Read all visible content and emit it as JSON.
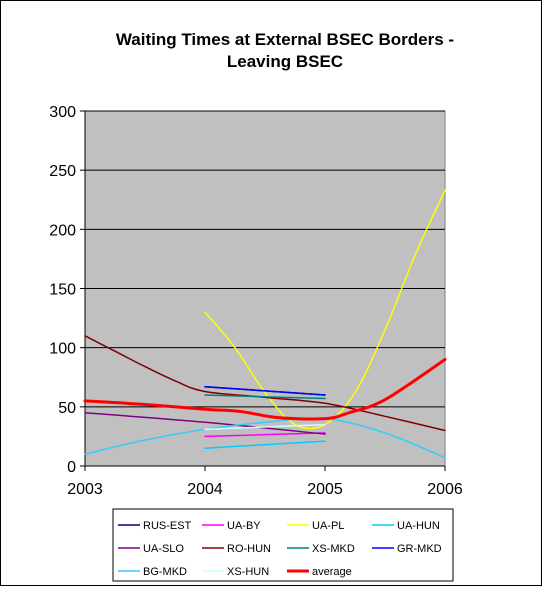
{
  "chart_data": {
    "type": "line",
    "title": "Waiting Times at External BSEC Borders - Leaving BSEC",
    "title_lines": [
      "Waiting Times at External BSEC Borders -",
      "Leaving BSEC"
    ],
    "xlabel": "",
    "ylabel": "",
    "x_ticks": [
      "2003",
      "2004",
      "2005",
      "2006"
    ],
    "y_ticks": [
      "0",
      "50",
      "100",
      "150",
      "200",
      "250",
      "300"
    ],
    "xlim": [
      2003,
      2006
    ],
    "ylim": [
      0,
      300
    ],
    "grid": "horizontal",
    "plot_background": "#c0c0c0",
    "legend_position": "bottom",
    "series": [
      {
        "name": "RUS-EST",
        "color": "#000080",
        "width": 1.5,
        "points": [
          [
            2004,
            67
          ],
          [
            2005,
            60
          ]
        ]
      },
      {
        "name": "UA-BY",
        "color": "#ff00ff",
        "width": 1.5,
        "points": [
          [
            2004,
            25
          ],
          [
            2005,
            28
          ]
        ]
      },
      {
        "name": "UA-PL",
        "color": "#ffff00",
        "width": 1.5,
        "points": [
          [
            2004,
            130
          ],
          [
            2004.25,
            100
          ],
          [
            2004.5,
            62
          ],
          [
            2004.75,
            35
          ],
          [
            2005,
            35
          ],
          [
            2005.25,
            62
          ],
          [
            2005.5,
            115
          ],
          [
            2005.75,
            178
          ],
          [
            2006,
            233
          ]
        ]
      },
      {
        "name": "UA-HUN",
        "color": "#00ccff",
        "width": 1.5,
        "points": [
          [
            2004,
            15
          ],
          [
            2005,
            21
          ]
        ]
      },
      {
        "name": "UA-SLO",
        "color": "#800080",
        "width": 1.5,
        "points": [
          [
            2003,
            45
          ],
          [
            2004,
            37
          ],
          [
            2005,
            27
          ]
        ]
      },
      {
        "name": "RO-HUN",
        "color": "#800000",
        "width": 1.5,
        "points": [
          [
            2003,
            110
          ],
          [
            2003.25,
            97
          ],
          [
            2003.5,
            84
          ],
          [
            2003.75,
            72
          ],
          [
            2004,
            63
          ],
          [
            2004.5,
            58
          ],
          [
            2005,
            53
          ],
          [
            2005.5,
            42
          ],
          [
            2006,
            30
          ]
        ]
      },
      {
        "name": "XS-MKD",
        "color": "#008080",
        "width": 1.5,
        "points": [
          [
            2004,
            60
          ],
          [
            2005,
            57
          ]
        ]
      },
      {
        "name": "GR-MKD",
        "color": "#0000ff",
        "width": 1.5,
        "points": [
          [
            2004,
            67
          ],
          [
            2005,
            60
          ]
        ]
      },
      {
        "name": "BG-MKD",
        "color": "#33ccff",
        "width": 1.5,
        "points": [
          [
            2003,
            10
          ],
          [
            2003.5,
            22
          ],
          [
            2004,
            31
          ],
          [
            2004.5,
            37
          ],
          [
            2005,
            40
          ],
          [
            2005.5,
            28
          ],
          [
            2006,
            7
          ]
        ]
      },
      {
        "name": "XS-HUN",
        "color": "#ccffff",
        "width": 1.5,
        "points": [
          [
            2004,
            31
          ],
          [
            2005,
            35
          ]
        ]
      },
      {
        "name": "average",
        "color": "#ff0000",
        "width": 3,
        "points": [
          [
            2003,
            55
          ],
          [
            2003.5,
            52
          ],
          [
            2004,
            48
          ],
          [
            2004.3,
            46
          ],
          [
            2004.6,
            41
          ],
          [
            2005,
            40
          ],
          [
            2005.2,
            45
          ],
          [
            2005.5,
            56
          ],
          [
            2006,
            90
          ]
        ]
      }
    ]
  }
}
